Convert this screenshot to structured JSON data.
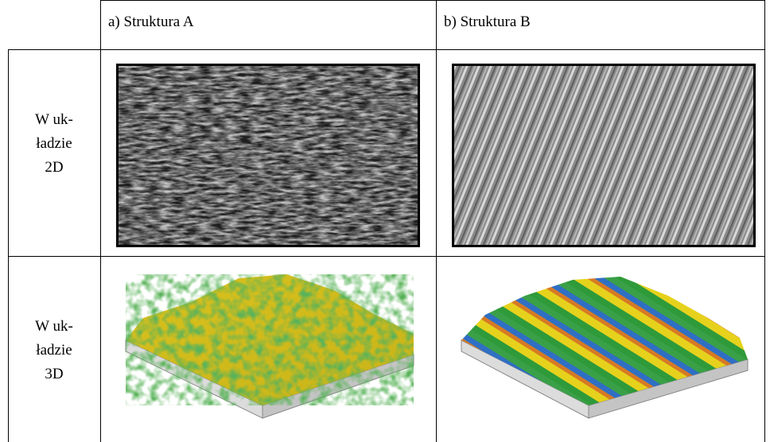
{
  "table": {
    "columns": [
      "a) Struktura A",
      "b) Struktura B"
    ],
    "rows": [
      {
        "label": [
          "W uk-",
          "ładzie",
          "2D"
        ]
      },
      {
        "label": [
          "W uk-",
          "ładzie",
          "3D"
        ]
      }
    ]
  }
}
